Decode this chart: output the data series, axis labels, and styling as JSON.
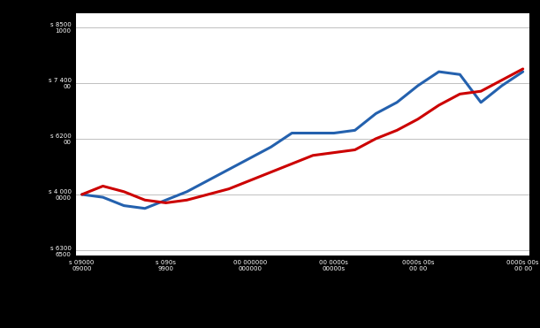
{
  "years": [
    1990,
    1991,
    1992,
    1993,
    1994,
    1995,
    1996,
    1997,
    1998,
    1999,
    2000,
    2001,
    2002,
    2003,
    2004,
    2005,
    2006,
    2007,
    2008,
    2009,
    2010,
    2011
  ],
  "gdp": [
    100,
    99,
    96,
    95,
    98,
    101,
    105,
    109,
    113,
    117,
    122,
    122,
    122,
    123,
    129,
    133,
    139,
    144,
    143,
    133,
    139,
    144
  ],
  "income": [
    100,
    103,
    101,
    98,
    97,
    98,
    100,
    102,
    105,
    108,
    111,
    114,
    115,
    116,
    120,
    123,
    127,
    132,
    136,
    137,
    141,
    145
  ],
  "blue_color": "#2461AE",
  "red_color": "#CC0000",
  "background_color": "#000000",
  "plot_background": "#ffffff",
  "grid_color": "#c0c0c0",
  "ylim": [
    78,
    165
  ],
  "yticks": [
    80,
    100,
    120,
    140,
    160
  ],
  "ytick_labels": [
    "s 6300\n6500",
    "s 4 000\n0000",
    "s 6200\n00",
    "s 7 400\n00",
    "s 8500\n1000"
  ],
  "xtick_positions": [
    1990,
    1994,
    1998,
    2002,
    2006,
    2011
  ],
  "xtick_labels": [
    "s 09000\n09000",
    "s 090s\n9900",
    "00 000000\n000000",
    "00 0000s\n00000s",
    "0000s 00s\n00 00",
    "0000s 00s\n00 00"
  ],
  "line_width": 2.2
}
